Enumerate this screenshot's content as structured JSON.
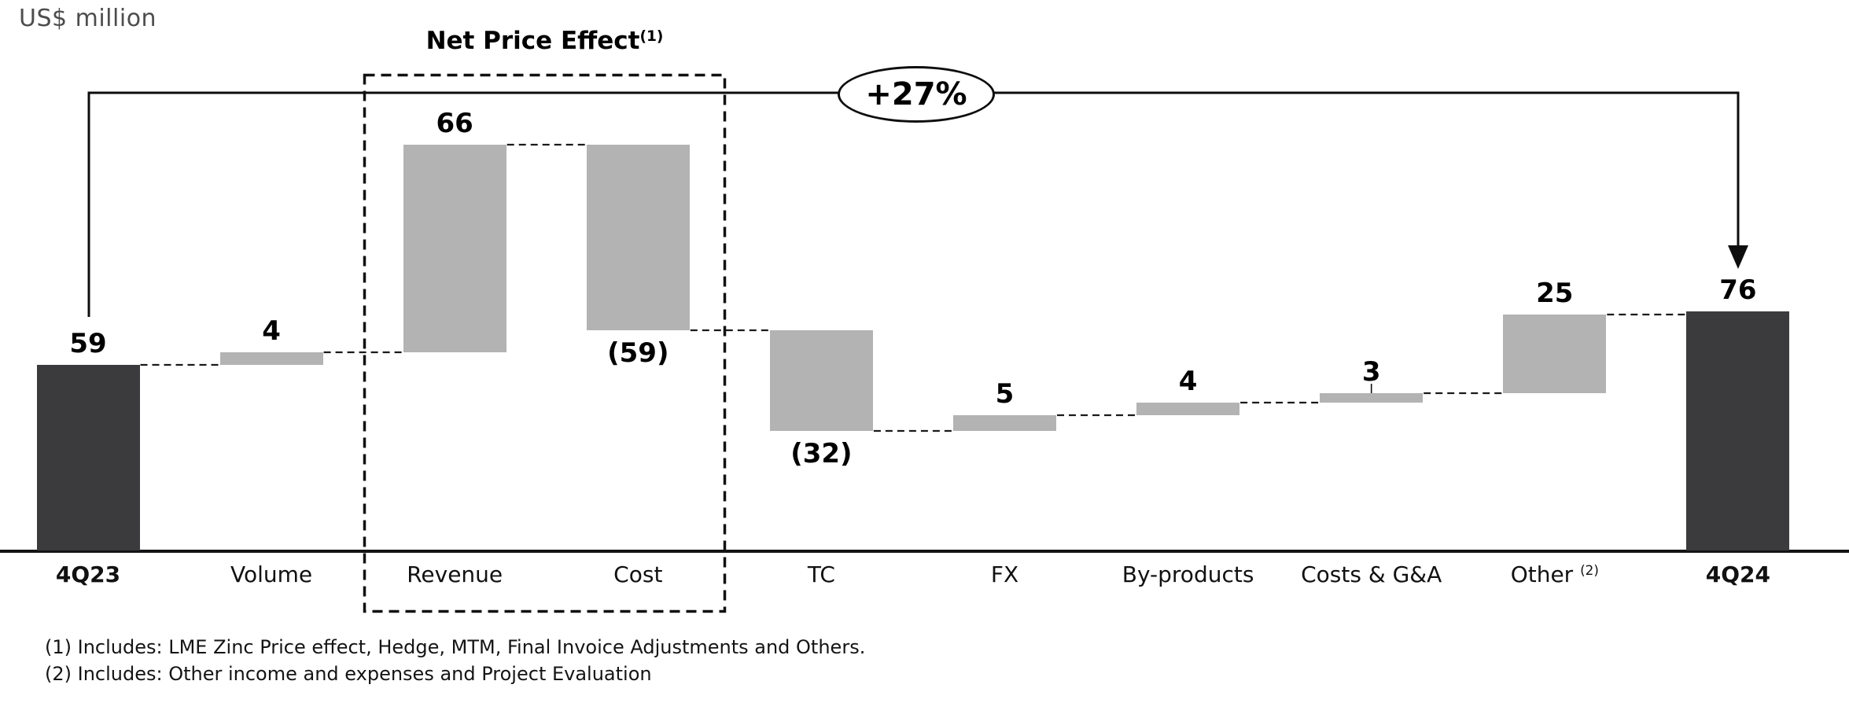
{
  "header": {
    "unit_label": "US$ million"
  },
  "annotations": {
    "net_price_title": "Net Price Effect",
    "net_price_sup": "(1)",
    "pct_label": "+27%"
  },
  "footnotes": {
    "line1": "(1) Includes: LME Zinc Price effect, Hedge, MTM, Final Invoice Adjustments and Others.",
    "line2": "(2) Includes: Other income and expenses and Project Evaluation"
  },
  "colors": {
    "total_bar": "#3b3b3d",
    "delta_bar": "#b3b3b3",
    "line": "#141414",
    "unit_label_text": "#4d4d4d"
  },
  "chart_data": {
    "type": "bar",
    "subtype": "waterfall",
    "title": "",
    "unit": "US$ million",
    "categories": [
      "4Q23",
      "Volume",
      "Revenue",
      "Cost",
      "TC",
      "FX",
      "By-products",
      "Costs & G&A",
      "Other",
      "4Q24"
    ],
    "bars": [
      {
        "category": "4Q23",
        "value": 59,
        "display": "59",
        "kind": "total",
        "bold_axis": true
      },
      {
        "category": "Volume",
        "value": 4,
        "display": "4",
        "kind": "delta"
      },
      {
        "category": "Revenue",
        "value": 66,
        "display": "66",
        "kind": "delta"
      },
      {
        "category": "Cost",
        "value": -59,
        "display": "(59)",
        "kind": "delta"
      },
      {
        "category": "TC",
        "value": -32,
        "display": "(32)",
        "kind": "delta"
      },
      {
        "category": "FX",
        "value": 5,
        "display": "5",
        "kind": "delta"
      },
      {
        "category": "By-products",
        "value": 4,
        "display": "4",
        "kind": "delta"
      },
      {
        "category": "Costs & G&A",
        "value": 3,
        "display": "3",
        "kind": "delta",
        "leader_tick": true
      },
      {
        "category": "Other",
        "value": 25,
        "display": "25",
        "kind": "delta",
        "cat_sup": "(2)"
      },
      {
        "category": "4Q24",
        "value": 76,
        "display": "76",
        "kind": "total",
        "bold_axis": true
      }
    ],
    "start_value": 59,
    "end_value": 76,
    "change_pct": "+27%",
    "group_box": {
      "label": "Net Price Effect",
      "sup": "(1)",
      "covers": [
        "Revenue",
        "Cost"
      ]
    },
    "baseline": 0,
    "grid": false,
    "legend": false
  }
}
